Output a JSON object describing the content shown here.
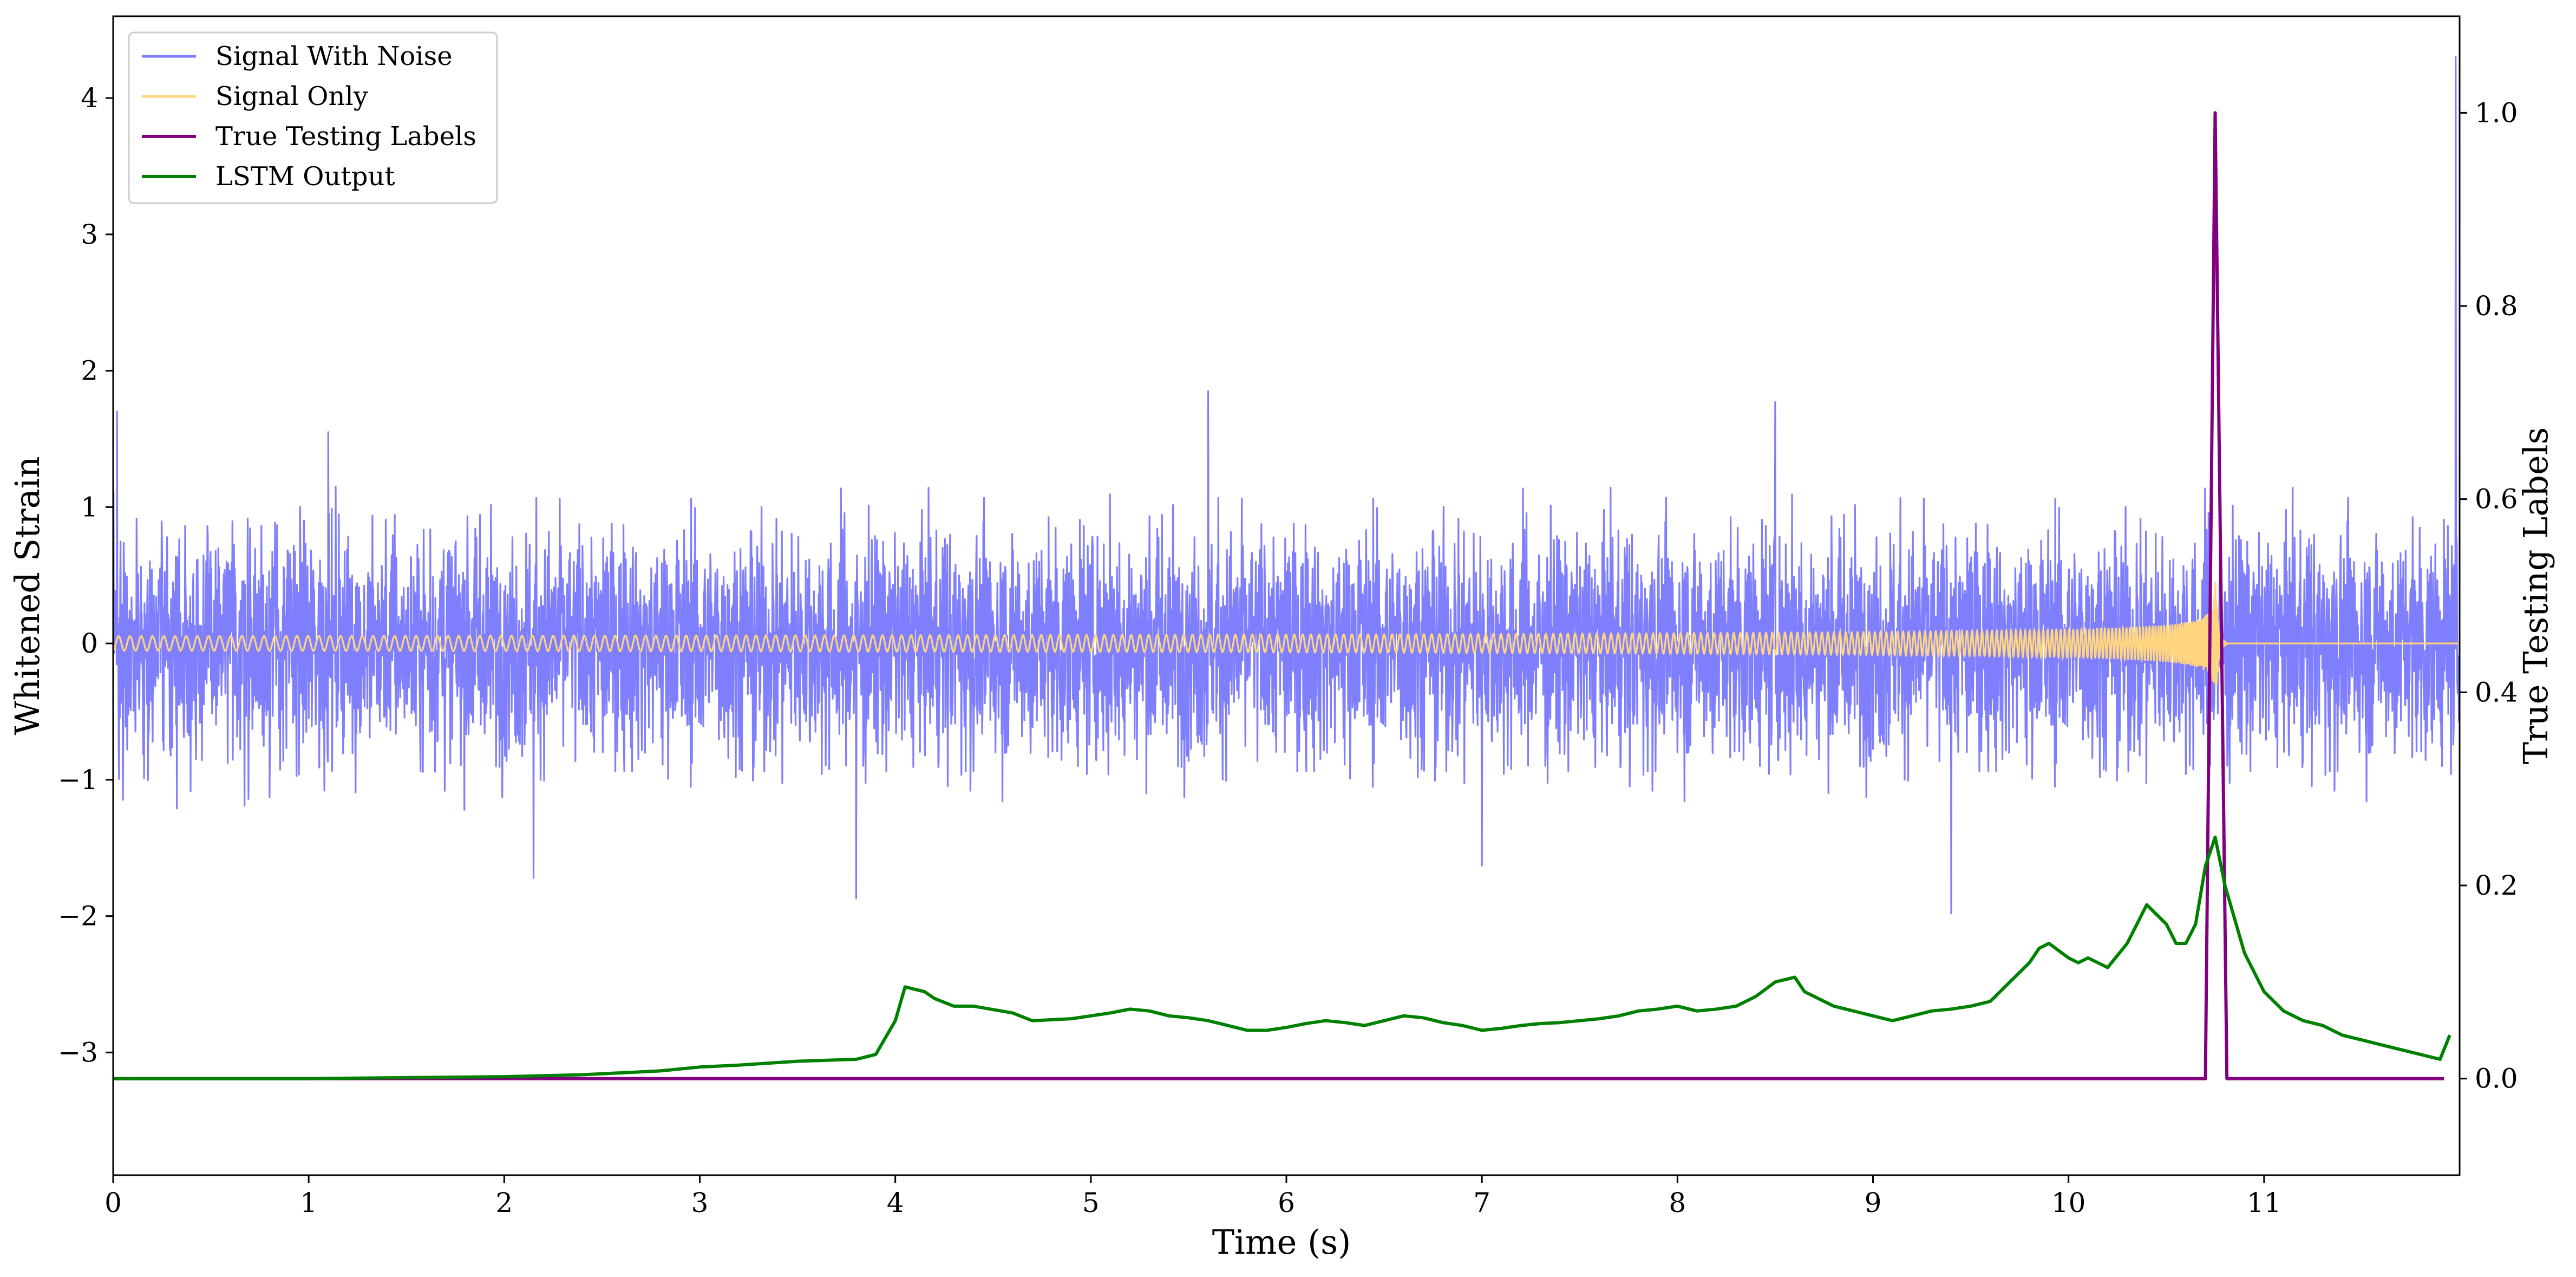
{
  "chart_data": {
    "type": "line",
    "title": "",
    "xlabel": "Time (s)",
    "ylabel": "Whitened Strain",
    "ylabel_right": "True Testing Labels",
    "xlim": [
      0,
      12
    ],
    "ylim": [
      -3.9,
      4.6
    ],
    "ylim_right": [
      -0.1,
      1.1
    ],
    "x_ticks": [
      "0",
      "1",
      "2",
      "3",
      "4",
      "5",
      "6",
      "7",
      "8",
      "9",
      "10",
      "11"
    ],
    "y_ticks": [
      "−3",
      "−2",
      "−1",
      "0",
      "1",
      "2",
      "3",
      "4"
    ],
    "y_ticks_right": [
      "0.0",
      "0.2",
      "0.4",
      "0.6",
      "0.8",
      "1.0"
    ],
    "grid": false,
    "legend_position": "top-left",
    "legend": [
      {
        "label": "Signal With Noise",
        "color": "#7f7ffd"
      },
      {
        "label": "Signal Only",
        "color": "#ffd580"
      },
      {
        "label": "True Testing Labels",
        "color": "#800080"
      },
      {
        "label": "LSTM Output",
        "color": "#008000"
      }
    ],
    "series": [
      {
        "name": "Signal With Noise",
        "axis": "left",
        "color": "#7f7ffd",
        "style": "dense noise",
        "sigma": 0.42,
        "typical_range": [
          -1.25,
          1.3
        ],
        "extreme_peaks": [
          {
            "x": 0.02,
            "y": 1.7
          },
          {
            "x": 1.1,
            "y": 1.55
          },
          {
            "x": 2.15,
            "y": -1.72
          },
          {
            "x": 3.8,
            "y": -1.87
          },
          {
            "x": 5.6,
            "y": 1.85
          },
          {
            "x": 7.0,
            "y": -1.63
          },
          {
            "x": 8.5,
            "y": 1.77
          },
          {
            "x": 9.4,
            "y": -1.98
          },
          {
            "x": 11.98,
            "y": 4.3
          }
        ]
      },
      {
        "name": "Signal Only",
        "axis": "left",
        "color": "#ffd580",
        "style": "chirp",
        "merger_time": 10.75,
        "peak_amplitude": 0.55
      },
      {
        "name": "True Testing Labels",
        "axis": "right",
        "color": "#800080",
        "x": [
          0,
          10.7,
          10.75,
          10.81,
          11.92
        ],
        "y": [
          0,
          0,
          1.0,
          0,
          0
        ]
      },
      {
        "name": "LSTM Output",
        "axis": "right",
        "color": "#008000",
        "x": [
          0,
          1.0,
          2.0,
          2.4,
          2.8,
          3.0,
          3.2,
          3.5,
          3.8,
          3.9,
          4.0,
          4.05,
          4.15,
          4.2,
          4.3,
          4.4,
          4.6,
          4.7,
          4.9,
          5.0,
          5.1,
          5.2,
          5.3,
          5.4,
          5.5,
          5.6,
          5.7,
          5.8,
          5.9,
          6.0,
          6.1,
          6.2,
          6.3,
          6.4,
          6.5,
          6.6,
          6.7,
          6.8,
          6.9,
          7.0,
          7.1,
          7.2,
          7.3,
          7.4,
          7.5,
          7.6,
          7.7,
          7.8,
          7.9,
          8.0,
          8.1,
          8.2,
          8.3,
          8.4,
          8.5,
          8.6,
          8.65,
          8.8,
          8.9,
          9.0,
          9.1,
          9.2,
          9.3,
          9.4,
          9.5,
          9.6,
          9.7,
          9.8,
          9.85,
          9.9,
          10.0,
          10.05,
          10.1,
          10.2,
          10.3,
          10.35,
          10.4,
          10.5,
          10.55,
          10.6,
          10.65,
          10.7,
          10.75,
          10.8,
          10.9,
          11.0,
          11.1,
          11.2,
          11.3,
          11.4,
          11.5,
          11.6,
          11.7,
          11.8,
          11.9,
          11.95
        ],
        "y": [
          0.0,
          0.0,
          0.002,
          0.004,
          0.008,
          0.012,
          0.014,
          0.018,
          0.02,
          0.025,
          0.06,
          0.095,
          0.09,
          0.083,
          0.075,
          0.075,
          0.068,
          0.06,
          0.062,
          0.065,
          0.068,
          0.072,
          0.07,
          0.065,
          0.063,
          0.06,
          0.055,
          0.05,
          0.05,
          0.053,
          0.057,
          0.06,
          0.058,
          0.055,
          0.06,
          0.065,
          0.063,
          0.058,
          0.055,
          0.05,
          0.052,
          0.055,
          0.057,
          0.058,
          0.06,
          0.062,
          0.065,
          0.07,
          0.072,
          0.075,
          0.07,
          0.072,
          0.075,
          0.085,
          0.1,
          0.105,
          0.09,
          0.075,
          0.07,
          0.065,
          0.06,
          0.065,
          0.07,
          0.072,
          0.075,
          0.08,
          0.1,
          0.12,
          0.135,
          0.14,
          0.125,
          0.12,
          0.125,
          0.115,
          0.14,
          0.16,
          0.18,
          0.16,
          0.14,
          0.14,
          0.16,
          0.22,
          0.25,
          0.2,
          0.13,
          0.09,
          0.07,
          0.06,
          0.055,
          0.045,
          0.04,
          0.035,
          0.03,
          0.025,
          0.02,
          0.045
        ]
      }
    ]
  }
}
